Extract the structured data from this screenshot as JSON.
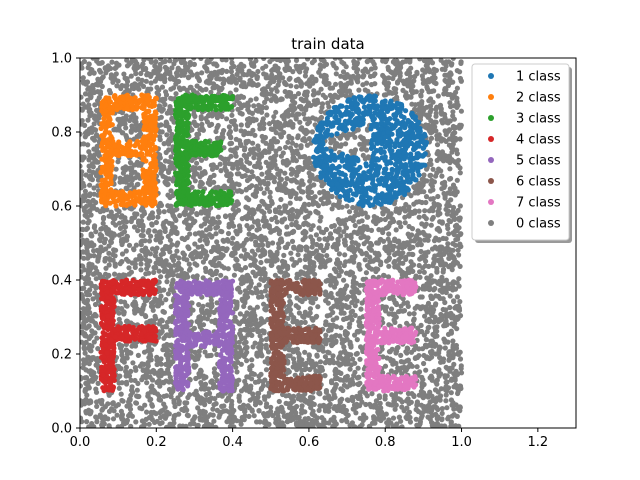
{
  "chart_data": {
    "type": "scatter",
    "title": "train data",
    "xlabel": "",
    "ylabel": "",
    "xlim": [
      0.0,
      1.3
    ],
    "ylim": [
      0.0,
      1.0
    ],
    "x_ticks": [
      "0.0",
      "0.2",
      "0.4",
      "0.6",
      "0.8",
      "1.0",
      "1.2"
    ],
    "y_ticks": [
      "0.0",
      "0.2",
      "0.4",
      "0.6",
      "0.8",
      "1.0"
    ],
    "grid": false,
    "legend_position": "top-right",
    "background_points": {
      "name": "0 class",
      "color": "#7f7f7f",
      "region": {
        "x": [
          0.0,
          1.0
        ],
        "y": [
          0.0,
          1.0
        ]
      }
    },
    "series": [
      {
        "name": "1 class",
        "color": "#1f77b4",
        "shape": "circle",
        "center": [
          0.76,
          0.75
        ],
        "radius": 0.15
      },
      {
        "name": "2 class",
        "color": "#ff7f0e",
        "shape": "letter B",
        "x_range": [
          0.05,
          0.2
        ],
        "y_range": [
          0.6,
          0.9
        ]
      },
      {
        "name": "3 class",
        "color": "#2ca02c",
        "shape": "letter E",
        "x_range": [
          0.25,
          0.4
        ],
        "y_range": [
          0.6,
          0.9
        ]
      },
      {
        "name": "4 class",
        "color": "#d62728",
        "shape": "letter F",
        "x_range": [
          0.05,
          0.2
        ],
        "y_range": [
          0.1,
          0.4
        ]
      },
      {
        "name": "5 class",
        "color": "#9467bd",
        "shape": "letter R",
        "x_range": [
          0.25,
          0.4
        ],
        "y_range": [
          0.1,
          0.4
        ]
      },
      {
        "name": "6 class",
        "color": "#8c564b",
        "shape": "letter E",
        "x_range": [
          0.5,
          0.63
        ],
        "y_range": [
          0.1,
          0.4
        ]
      },
      {
        "name": "7 class",
        "color": "#e377c2",
        "shape": "letter E",
        "x_range": [
          0.75,
          0.88
        ],
        "y_range": [
          0.1,
          0.4
        ]
      }
    ],
    "legend": [
      {
        "label": "1 class",
        "color": "#1f77b4"
      },
      {
        "label": "2 class",
        "color": "#ff7f0e"
      },
      {
        "label": "3 class",
        "color": "#2ca02c"
      },
      {
        "label": "4 class",
        "color": "#d62728"
      },
      {
        "label": "5 class",
        "color": "#9467bd"
      },
      {
        "label": "6 class",
        "color": "#8c564b"
      },
      {
        "label": "7 class",
        "color": "#e377c2"
      },
      {
        "label": "0 class",
        "color": "#7f7f7f"
      }
    ]
  }
}
